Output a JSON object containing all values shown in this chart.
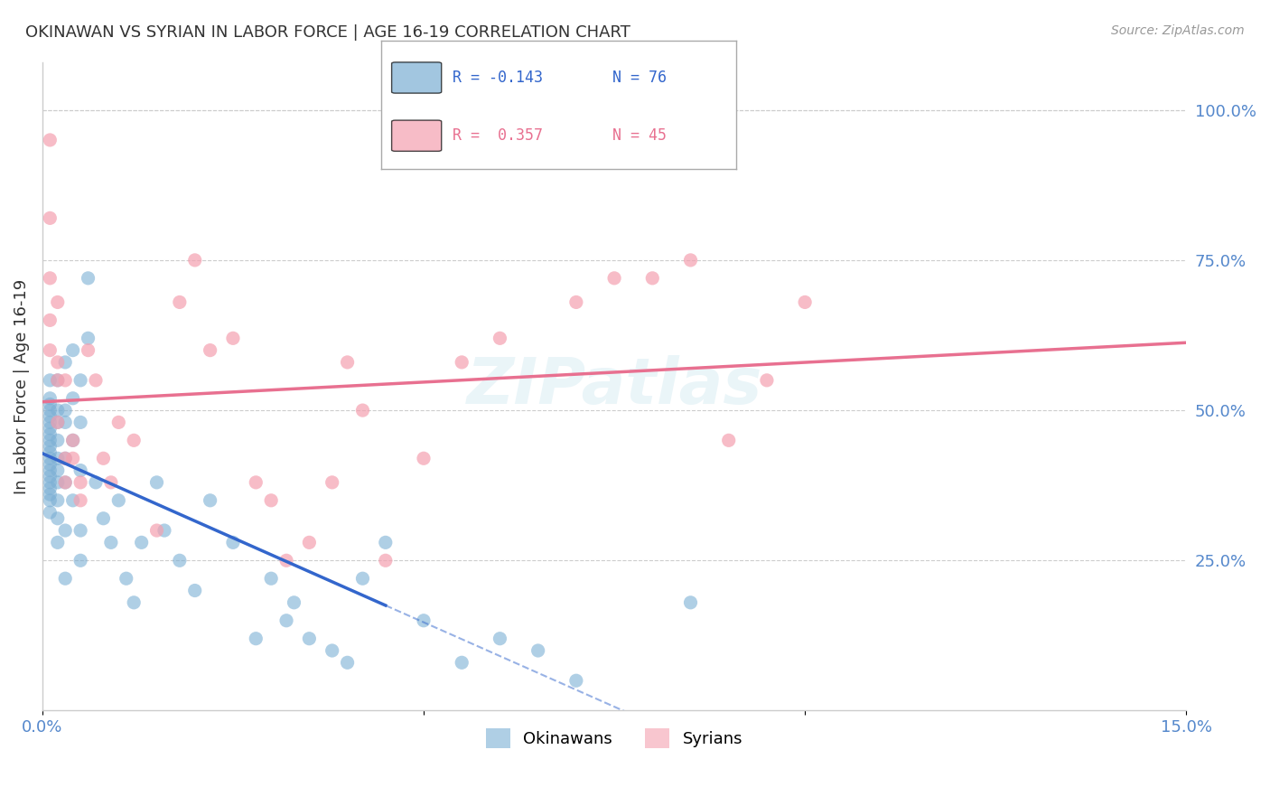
{
  "title": "OKINAWAN VS SYRIAN IN LABOR FORCE | AGE 16-19 CORRELATION CHART",
  "source": "Source: ZipAtlas.com",
  "xlabel": "",
  "ylabel": "In Labor Force | Age 16-19",
  "xlim": [
    0.0,
    0.15
  ],
  "ylim": [
    0.0,
    1.05
  ],
  "xticks": [
    0.0,
    0.05,
    0.1,
    0.15
  ],
  "xticklabels": [
    "0.0%",
    "",
    "",
    "15.0%"
  ],
  "yticks_right": [
    0.25,
    0.5,
    0.75,
    1.0
  ],
  "ytick_labels_right": [
    "25.0%",
    "50.0%",
    "75.0%",
    "100.0%"
  ],
  "okinawan_color": "#7bafd4",
  "syrian_color": "#f4a0b0",
  "okinawan_line_color": "#3366cc",
  "syrian_line_color": "#e87090",
  "legend_okinawan_label": "Okinawans",
  "legend_syrian_label": "Syrians",
  "legend_r_okinawan": "R = -0.143",
  "legend_n_okinawan": "N = 76",
  "legend_r_syrian": "R =  0.357",
  "legend_n_syrian": "N = 45",
  "watermark": "ZIPatlas",
  "background_color": "#ffffff",
  "grid_color": "#cccccc",
  "axis_label_color": "#5588cc",
  "title_color": "#333333",
  "okinawan_x": [
    0.001,
    0.001,
    0.001,
    0.001,
    0.001,
    0.001,
    0.001,
    0.001,
    0.001,
    0.001,
    0.001,
    0.001,
    0.001,
    0.001,
    0.001,
    0.001,
    0.001,
    0.001,
    0.001,
    0.001,
    0.002,
    0.002,
    0.002,
    0.002,
    0.002,
    0.002,
    0.002,
    0.002,
    0.002,
    0.002,
    0.003,
    0.003,
    0.003,
    0.003,
    0.003,
    0.003,
    0.003,
    0.004,
    0.004,
    0.004,
    0.004,
    0.005,
    0.005,
    0.005,
    0.005,
    0.005,
    0.006,
    0.006,
    0.007,
    0.008,
    0.009,
    0.01,
    0.011,
    0.012,
    0.013,
    0.015,
    0.016,
    0.018,
    0.02,
    0.022,
    0.025,
    0.028,
    0.03,
    0.032,
    0.033,
    0.035,
    0.038,
    0.04,
    0.042,
    0.045,
    0.05,
    0.055,
    0.06,
    0.065,
    0.07,
    0.085
  ],
  "okinawan_y": [
    0.4,
    0.38,
    0.43,
    0.42,
    0.46,
    0.45,
    0.44,
    0.41,
    0.39,
    0.36,
    0.35,
    0.33,
    0.37,
    0.5,
    0.48,
    0.47,
    0.49,
    0.51,
    0.52,
    0.55,
    0.5,
    0.45,
    0.4,
    0.35,
    0.55,
    0.38,
    0.42,
    0.48,
    0.32,
    0.28,
    0.5,
    0.48,
    0.42,
    0.38,
    0.3,
    0.22,
    0.58,
    0.52,
    0.6,
    0.45,
    0.35,
    0.55,
    0.48,
    0.4,
    0.3,
    0.25,
    0.62,
    0.72,
    0.38,
    0.32,
    0.28,
    0.35,
    0.22,
    0.18,
    0.28,
    0.38,
    0.3,
    0.25,
    0.2,
    0.35,
    0.28,
    0.12,
    0.22,
    0.15,
    0.18,
    0.12,
    0.1,
    0.08,
    0.22,
    0.28,
    0.15,
    0.08,
    0.12,
    0.1,
    0.05,
    0.18
  ],
  "syrian_x": [
    0.001,
    0.001,
    0.001,
    0.001,
    0.001,
    0.002,
    0.002,
    0.002,
    0.002,
    0.003,
    0.003,
    0.003,
    0.004,
    0.004,
    0.005,
    0.005,
    0.006,
    0.007,
    0.008,
    0.009,
    0.01,
    0.012,
    0.015,
    0.018,
    0.02,
    0.022,
    0.025,
    0.028,
    0.03,
    0.032,
    0.035,
    0.038,
    0.04,
    0.042,
    0.045,
    0.05,
    0.055,
    0.06,
    0.07,
    0.075,
    0.08,
    0.085,
    0.09,
    0.095,
    0.1
  ],
  "syrian_y": [
    0.95,
    0.82,
    0.72,
    0.65,
    0.6,
    0.68,
    0.58,
    0.55,
    0.48,
    0.55,
    0.42,
    0.38,
    0.45,
    0.42,
    0.38,
    0.35,
    0.6,
    0.55,
    0.42,
    0.38,
    0.48,
    0.45,
    0.3,
    0.68,
    0.75,
    0.6,
    0.62,
    0.38,
    0.35,
    0.25,
    0.28,
    0.38,
    0.58,
    0.5,
    0.25,
    0.42,
    0.58,
    0.62,
    0.68,
    0.72,
    0.72,
    0.75,
    0.45,
    0.55,
    0.68
  ]
}
